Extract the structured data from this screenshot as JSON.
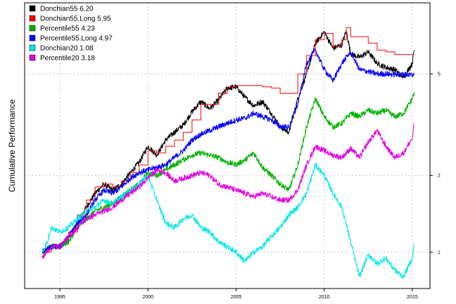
{
  "chart_data": {
    "type": "line",
    "title": "",
    "xlabel": "",
    "ylabel": "Cumulative Performance",
    "y_scale": "log",
    "xlim": [
      1993.0,
      2016.0
    ],
    "ylim": [
      0.72,
      9.5
    ],
    "x_ticks": [
      1995,
      2000,
      2005,
      2010,
      2015
    ],
    "y_ticks": [
      1,
      2,
      5
    ],
    "y_axis_side": "right",
    "grid": true,
    "legend_position": "top-left",
    "series": [
      {
        "name": "Donchian55 6.20",
        "color": "#000000",
        "step": false,
        "points": [
          [
            1994.0,
            1.0
          ],
          [
            1994.5,
            1.05
          ],
          [
            1995.0,
            1.05
          ],
          [
            1995.5,
            1.15
          ],
          [
            1996.0,
            1.3
          ],
          [
            1996.5,
            1.5
          ],
          [
            1997.0,
            1.7
          ],
          [
            1997.5,
            1.85
          ],
          [
            1998.0,
            1.75
          ],
          [
            1998.5,
            1.85
          ],
          [
            1999.0,
            2.05
          ],
          [
            1999.5,
            2.25
          ],
          [
            2000.0,
            2.6
          ],
          [
            2000.5,
            2.4
          ],
          [
            2001.0,
            2.75
          ],
          [
            2001.5,
            2.95
          ],
          [
            2002.0,
            3.15
          ],
          [
            2002.5,
            3.55
          ],
          [
            2003.0,
            3.9
          ],
          [
            2003.5,
            3.65
          ],
          [
            2004.0,
            3.95
          ],
          [
            2004.5,
            4.4
          ],
          [
            2005.0,
            4.45
          ],
          [
            2005.5,
            4.05
          ],
          [
            2006.0,
            3.75
          ],
          [
            2006.5,
            3.9
          ],
          [
            2007.0,
            3.5
          ],
          [
            2007.5,
            3.1
          ],
          [
            2008.0,
            2.95
          ],
          [
            2008.5,
            4.0
          ],
          [
            2009.0,
            5.0
          ],
          [
            2009.5,
            6.6
          ],
          [
            2010.0,
            7.3
          ],
          [
            2010.5,
            6.3
          ],
          [
            2011.0,
            6.5
          ],
          [
            2011.25,
            7.4
          ],
          [
            2011.5,
            6.0
          ],
          [
            2012.0,
            5.8
          ],
          [
            2012.5,
            6.1
          ],
          [
            2013.0,
            5.5
          ],
          [
            2013.5,
            5.3
          ],
          [
            2014.0,
            5.2
          ],
          [
            2014.5,
            4.85
          ],
          [
            2015.0,
            5.5
          ],
          [
            2015.1,
            6.2
          ]
        ]
      },
      {
        "name": "Donchian55.Long 5.95",
        "color": "#ff0000",
        "step": true,
        "points": [
          [
            1994.0,
            1.0
          ],
          [
            1994.5,
            1.05
          ],
          [
            1995.0,
            1.08
          ],
          [
            1995.5,
            1.2
          ],
          [
            1996.0,
            1.4
          ],
          [
            1996.5,
            1.6
          ],
          [
            1997.0,
            1.8
          ],
          [
            1997.5,
            1.85
          ],
          [
            1998.0,
            1.8
          ],
          [
            1998.5,
            1.9
          ],
          [
            1999.0,
            2.05
          ],
          [
            1999.5,
            2.2
          ],
          [
            2000.0,
            2.5
          ],
          [
            2000.5,
            2.45
          ],
          [
            2001.0,
            2.6
          ],
          [
            2001.5,
            2.75
          ],
          [
            2002.0,
            2.95
          ],
          [
            2002.5,
            3.3
          ],
          [
            2003.0,
            3.8
          ],
          [
            2003.5,
            3.8
          ],
          [
            2004.0,
            4.2
          ],
          [
            2004.5,
            4.45
          ],
          [
            2005.0,
            4.5
          ],
          [
            2005.5,
            4.5
          ],
          [
            2006.0,
            4.5
          ],
          [
            2006.5,
            4.45
          ],
          [
            2007.0,
            4.4
          ],
          [
            2007.5,
            4.2
          ],
          [
            2008.0,
            4.2
          ],
          [
            2008.5,
            5.0
          ],
          [
            2009.0,
            5.9
          ],
          [
            2009.5,
            6.8
          ],
          [
            2010.0,
            7.2
          ],
          [
            2010.5,
            6.4
          ],
          [
            2011.0,
            6.8
          ],
          [
            2011.25,
            7.6
          ],
          [
            2011.5,
            7.0
          ],
          [
            2012.0,
            7.0
          ],
          [
            2012.5,
            6.6
          ],
          [
            2013.0,
            6.2
          ],
          [
            2013.5,
            6.1
          ],
          [
            2014.0,
            5.95
          ],
          [
            2014.5,
            5.95
          ],
          [
            2015.0,
            5.95
          ],
          [
            2015.1,
            5.95
          ]
        ]
      },
      {
        "name": "Percentile55 4.23",
        "color": "#00b000",
        "step": false,
        "points": [
          [
            1994.0,
            1.0
          ],
          [
            1994.5,
            1.05
          ],
          [
            1995.0,
            1.05
          ],
          [
            1995.5,
            1.1
          ],
          [
            1996.0,
            1.25
          ],
          [
            1996.5,
            1.35
          ],
          [
            1997.0,
            1.45
          ],
          [
            1997.5,
            1.5
          ],
          [
            1998.0,
            1.55
          ],
          [
            1998.5,
            1.65
          ],
          [
            1999.0,
            1.75
          ],
          [
            1999.5,
            1.85
          ],
          [
            2000.0,
            2.05
          ],
          [
            2000.5,
            2.0
          ],
          [
            2001.0,
            2.1
          ],
          [
            2001.5,
            2.2
          ],
          [
            2002.0,
            2.3
          ],
          [
            2002.5,
            2.4
          ],
          [
            2003.0,
            2.45
          ],
          [
            2003.5,
            2.4
          ],
          [
            2004.0,
            2.35
          ],
          [
            2004.5,
            2.25
          ],
          [
            2005.0,
            2.2
          ],
          [
            2005.5,
            2.3
          ],
          [
            2006.0,
            2.45
          ],
          [
            2006.5,
            2.15
          ],
          [
            2007.0,
            2.0
          ],
          [
            2007.5,
            1.85
          ],
          [
            2008.0,
            1.75
          ],
          [
            2008.5,
            2.2
          ],
          [
            2009.0,
            3.1
          ],
          [
            2009.5,
            4.0
          ],
          [
            2010.0,
            3.4
          ],
          [
            2010.5,
            3.1
          ],
          [
            2011.0,
            3.2
          ],
          [
            2011.5,
            3.5
          ],
          [
            2012.0,
            3.4
          ],
          [
            2012.5,
            3.6
          ],
          [
            2013.0,
            3.5
          ],
          [
            2013.5,
            3.6
          ],
          [
            2014.0,
            3.4
          ],
          [
            2014.5,
            3.5
          ],
          [
            2015.0,
            4.0
          ],
          [
            2015.1,
            4.23
          ]
        ]
      },
      {
        "name": "Percentile55.Long 4.97",
        "color": "#0000ff",
        "step": false,
        "points": [
          [
            1994.0,
            1.0
          ],
          [
            1994.5,
            1.05
          ],
          [
            1995.0,
            1.05
          ],
          [
            1995.5,
            1.15
          ],
          [
            1996.0,
            1.3
          ],
          [
            1996.5,
            1.4
          ],
          [
            1997.0,
            1.6
          ],
          [
            1997.5,
            1.75
          ],
          [
            1998.0,
            1.7
          ],
          [
            1998.5,
            1.8
          ],
          [
            1999.0,
            1.95
          ],
          [
            1999.5,
            2.05
          ],
          [
            2000.0,
            2.1
          ],
          [
            2000.5,
            2.15
          ],
          [
            2001.0,
            2.2
          ],
          [
            2001.5,
            2.35
          ],
          [
            2002.0,
            2.5
          ],
          [
            2002.5,
            2.75
          ],
          [
            2003.0,
            2.9
          ],
          [
            2003.5,
            3.0
          ],
          [
            2004.0,
            3.1
          ],
          [
            2004.5,
            3.2
          ],
          [
            2005.0,
            3.3
          ],
          [
            2005.5,
            3.35
          ],
          [
            2006.0,
            3.5
          ],
          [
            2006.5,
            3.4
          ],
          [
            2007.0,
            3.3
          ],
          [
            2007.5,
            3.1
          ],
          [
            2008.0,
            3.1
          ],
          [
            2008.5,
            3.8
          ],
          [
            2009.0,
            5.5
          ],
          [
            2009.5,
            6.2
          ],
          [
            2010.0,
            5.2
          ],
          [
            2010.5,
            4.7
          ],
          [
            2011.0,
            5.5
          ],
          [
            2011.5,
            6.1
          ],
          [
            2012.0,
            5.2
          ],
          [
            2012.5,
            5.1
          ],
          [
            2013.0,
            5.0
          ],
          [
            2013.5,
            5.0
          ],
          [
            2014.0,
            4.97
          ],
          [
            2014.5,
            4.97
          ],
          [
            2015.0,
            4.97
          ],
          [
            2015.1,
            4.97
          ]
        ]
      },
      {
        "name": "Donchian20 1.08",
        "color": "#00e8e8",
        "step": false,
        "points": [
          [
            1994.0,
            1.0
          ],
          [
            1994.3,
            1.1
          ],
          [
            1994.5,
            1.25
          ],
          [
            1995.0,
            1.2
          ],
          [
            1995.5,
            1.25
          ],
          [
            1996.0,
            1.35
          ],
          [
            1996.5,
            1.45
          ],
          [
            1997.0,
            1.5
          ],
          [
            1997.5,
            1.6
          ],
          [
            1998.0,
            1.55
          ],
          [
            1998.5,
            1.65
          ],
          [
            1999.0,
            1.75
          ],
          [
            1999.5,
            1.85
          ],
          [
            2000.0,
            2.0
          ],
          [
            2000.5,
            1.6
          ],
          [
            2001.0,
            1.3
          ],
          [
            2001.5,
            1.25
          ],
          [
            2002.0,
            1.35
          ],
          [
            2002.5,
            1.4
          ],
          [
            2003.0,
            1.25
          ],
          [
            2003.5,
            1.2
          ],
          [
            2004.0,
            1.1
          ],
          [
            2004.5,
            1.05
          ],
          [
            2005.0,
            1.0
          ],
          [
            2005.5,
            0.92
          ],
          [
            2006.0,
            1.0
          ],
          [
            2006.5,
            1.05
          ],
          [
            2007.0,
            1.15
          ],
          [
            2007.5,
            1.25
          ],
          [
            2008.0,
            1.4
          ],
          [
            2008.5,
            1.5
          ],
          [
            2009.0,
            1.7
          ],
          [
            2009.5,
            2.2
          ],
          [
            2010.0,
            2.0
          ],
          [
            2010.5,
            1.7
          ],
          [
            2011.0,
            1.5
          ],
          [
            2011.5,
            1.1
          ],
          [
            2012.0,
            0.8
          ],
          [
            2012.5,
            0.98
          ],
          [
            2013.0,
            0.9
          ],
          [
            2013.5,
            0.95
          ],
          [
            2014.0,
            0.85
          ],
          [
            2014.5,
            0.8
          ],
          [
            2015.0,
            0.95
          ],
          [
            2015.1,
            1.08
          ]
        ]
      },
      {
        "name": "Percentile20 3.18",
        "color": "#e000e0",
        "step": false,
        "points": [
          [
            1994.0,
            0.95
          ],
          [
            1994.5,
            1.05
          ],
          [
            1995.0,
            1.05
          ],
          [
            1995.5,
            1.15
          ],
          [
            1996.0,
            1.25
          ],
          [
            1996.5,
            1.35
          ],
          [
            1997.0,
            1.4
          ],
          [
            1997.5,
            1.45
          ],
          [
            1998.0,
            1.5
          ],
          [
            1998.5,
            1.6
          ],
          [
            1999.0,
            1.7
          ],
          [
            1999.5,
            1.8
          ],
          [
            2000.0,
            1.95
          ],
          [
            2000.5,
            2.1
          ],
          [
            2001.0,
            2.05
          ],
          [
            2001.5,
            1.9
          ],
          [
            2002.0,
            1.95
          ],
          [
            2002.5,
            2.0
          ],
          [
            2003.0,
            2.05
          ],
          [
            2003.5,
            2.0
          ],
          [
            2004.0,
            1.85
          ],
          [
            2004.5,
            1.8
          ],
          [
            2005.0,
            1.75
          ],
          [
            2005.5,
            1.7
          ],
          [
            2006.0,
            1.65
          ],
          [
            2006.5,
            1.7
          ],
          [
            2007.0,
            1.65
          ],
          [
            2007.5,
            1.6
          ],
          [
            2008.0,
            1.6
          ],
          [
            2008.5,
            1.75
          ],
          [
            2009.0,
            2.2
          ],
          [
            2009.5,
            2.6
          ],
          [
            2010.0,
            2.5
          ],
          [
            2010.5,
            2.4
          ],
          [
            2011.0,
            2.35
          ],
          [
            2011.5,
            2.55
          ],
          [
            2012.0,
            2.35
          ],
          [
            2012.5,
            2.7
          ],
          [
            2013.0,
            3.0
          ],
          [
            2013.5,
            2.6
          ],
          [
            2014.0,
            2.35
          ],
          [
            2014.5,
            2.45
          ],
          [
            2015.0,
            2.8
          ],
          [
            2015.1,
            3.18
          ]
        ]
      }
    ]
  }
}
